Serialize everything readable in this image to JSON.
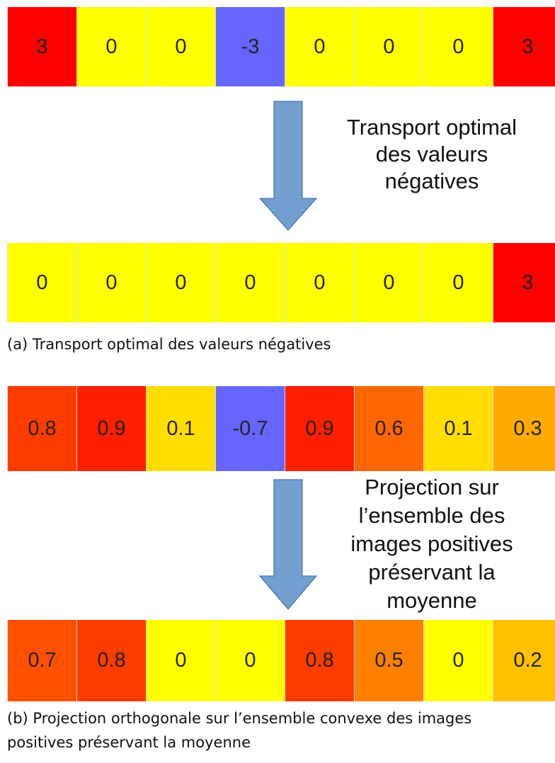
{
  "rows": [
    {
      "cells": [
        {
          "text": "3",
          "color": "#ff0000"
        },
        {
          "text": "0",
          "color": "#ffff00"
        },
        {
          "text": "0",
          "color": "#ffff00"
        },
        {
          "text": "-3",
          "color": "#6666ff"
        },
        {
          "text": "0",
          "color": "#ffff00"
        },
        {
          "text": "0",
          "color": "#ffff00"
        },
        {
          "text": "0",
          "color": "#ffff00"
        },
        {
          "text": "3",
          "color": "#ff0000"
        }
      ]
    },
    {
      "cells": [
        {
          "text": "0",
          "color": "#ffff00"
        },
        {
          "text": "0",
          "color": "#ffff00"
        },
        {
          "text": "0",
          "color": "#ffff00"
        },
        {
          "text": "0",
          "color": "#ffff00"
        },
        {
          "text": "0",
          "color": "#ffff00"
        },
        {
          "text": "0",
          "color": "#ffff00"
        },
        {
          "text": "0",
          "color": "#ffff00"
        },
        {
          "text": "3",
          "color": "#ff0000"
        }
      ]
    },
    {
      "cells": [
        {
          "text": "0.8",
          "color": "#ff3c00"
        },
        {
          "text": "0.9",
          "color": "#ff1e00"
        },
        {
          "text": "0.1",
          "color": "#ffdd00"
        },
        {
          "text": "-0.7",
          "color": "#6666ff"
        },
        {
          "text": "0.9",
          "color": "#ff1e00"
        },
        {
          "text": "0.6",
          "color": "#ff6600"
        },
        {
          "text": "0.1",
          "color": "#ffdd00"
        },
        {
          "text": "0.3",
          "color": "#ffaa00"
        }
      ]
    },
    {
      "cells": [
        {
          "text": "0.7",
          "color": "#ff5000"
        },
        {
          "text": "0.8",
          "color": "#ff3c00"
        },
        {
          "text": "0",
          "color": "#ffff00"
        },
        {
          "text": "0",
          "color": "#ffff00"
        },
        {
          "text": "0.8",
          "color": "#ff3c00"
        },
        {
          "text": "0.5",
          "color": "#ff8000"
        },
        {
          "text": "0",
          "color": "#ffff00"
        },
        {
          "text": "0.2",
          "color": "#ffc000"
        }
      ]
    }
  ],
  "arrows": [
    {
      "label_lines": [
        "Transport optimal",
        "des valeurs",
        "négatives"
      ]
    },
    {
      "label_lines": [
        "Projection sur",
        "l’ensemble des",
        "images positives",
        "préservant la",
        "moyenne"
      ]
    }
  ],
  "captions": [
    {
      "lines": [
        "(a) Transport optimal des valeurs négatives"
      ]
    },
    {
      "lines": [
        "(b) Projection orthogonale sur l’ensemble convexe des images",
        "positives préservant la moyenne"
      ]
    }
  ]
}
